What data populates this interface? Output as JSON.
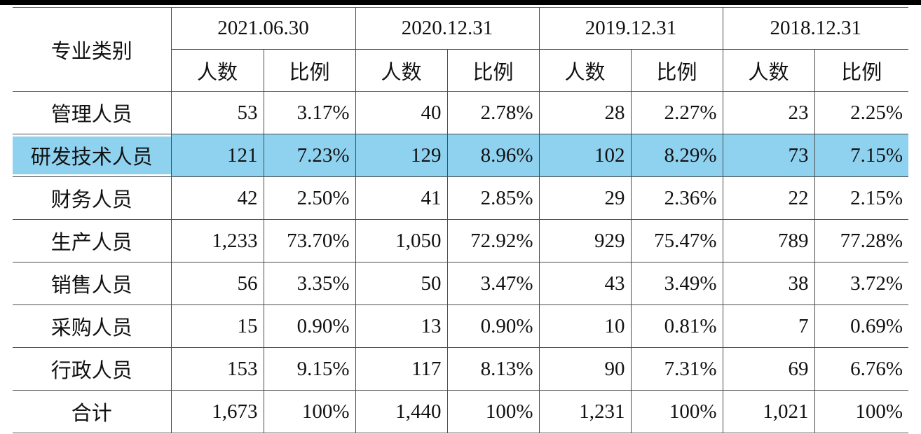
{
  "table": {
    "header": {
      "category": "专业类别",
      "periods": [
        "2021.06.30",
        "2020.12.31",
        "2019.12.31",
        "2018.12.31"
      ],
      "count_label": "人数",
      "ratio_label": "比例"
    },
    "rows": [
      {
        "category": "管理人员",
        "cells": [
          "53",
          "3.17%",
          "40",
          "2.78%",
          "28",
          "2.27%",
          "23",
          "2.25%"
        ]
      },
      {
        "category": "研发技术人员",
        "cells": [
          "121",
          "7.23%",
          "129",
          "8.96%",
          "102",
          "8.29%",
          "73",
          "7.15%"
        ],
        "highlighted": true
      },
      {
        "category": "财务人员",
        "cells": [
          "42",
          "2.50%",
          "41",
          "2.85%",
          "29",
          "2.36%",
          "22",
          "2.15%"
        ]
      },
      {
        "category": "生产人员",
        "cells": [
          "1,233",
          "73.70%",
          "1,050",
          "72.92%",
          "929",
          "75.47%",
          "789",
          "77.28%"
        ]
      },
      {
        "category": "销售人员",
        "cells": [
          "56",
          "3.35%",
          "50",
          "3.47%",
          "43",
          "3.49%",
          "38",
          "3.72%"
        ]
      },
      {
        "category": "采购人员",
        "cells": [
          "15",
          "0.90%",
          "13",
          "0.90%",
          "10",
          "0.81%",
          "7",
          "0.69%"
        ]
      },
      {
        "category": "行政人员",
        "cells": [
          "153",
          "9.15%",
          "117",
          "8.13%",
          "90",
          "7.31%",
          "69",
          "6.76%"
        ]
      },
      {
        "category": "合计",
        "cells": [
          "1,673",
          "100%",
          "1,440",
          "100%",
          "1,231",
          "100%",
          "1,021",
          "100%"
        ]
      }
    ]
  },
  "colors": {
    "highlight": "#8fd2f0",
    "border": "#4a4a4a",
    "top_bar": "#000000"
  }
}
